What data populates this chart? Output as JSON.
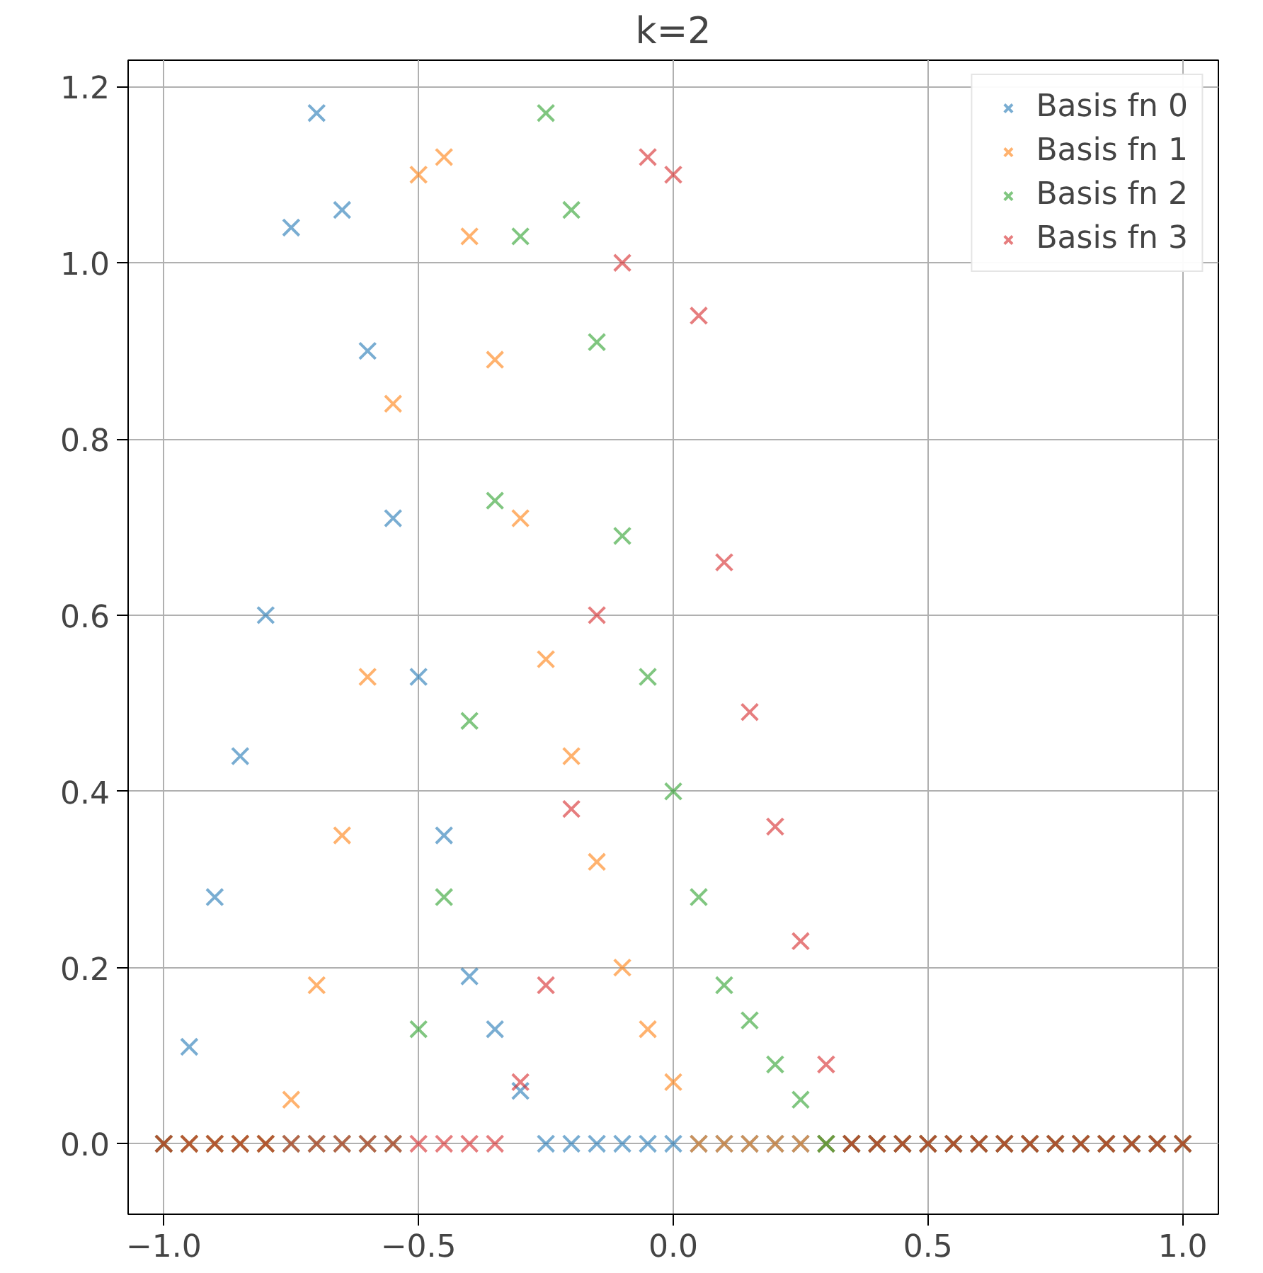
{
  "chart_data": {
    "type": "scatter",
    "title": "k=2",
    "x": [
      -1.0,
      -0.95,
      -0.9,
      -0.85,
      -0.8,
      -0.75,
      -0.7,
      -0.65,
      -0.6,
      -0.55,
      -0.5,
      -0.45,
      -0.4,
      -0.35,
      -0.3,
      -0.25,
      -0.2,
      -0.15,
      -0.1,
      -0.05,
      0.0,
      0.05,
      0.1,
      0.15,
      0.2,
      0.25,
      0.3,
      0.35,
      0.4,
      0.45,
      0.5,
      0.55,
      0.6,
      0.65,
      0.7,
      0.75,
      0.8,
      0.85,
      0.9,
      0.95,
      1.0
    ],
    "series": [
      {
        "name": "Basis fn 0",
        "color": "#1f77b4",
        "values": [
          0,
          0.11,
          0.28,
          0.44,
          0.6,
          1.04,
          1.17,
          1.06,
          0.9,
          0.71,
          0.53,
          0.35,
          0.19,
          0.13,
          0.06,
          0,
          0,
          0,
          0,
          0,
          0,
          0,
          0,
          0,
          0,
          0,
          0,
          0,
          0,
          0,
          0,
          0,
          0,
          0,
          0,
          0,
          0,
          0,
          0,
          0,
          0
        ]
      },
      {
        "name": "Basis fn 1",
        "color": "#ff7f0e",
        "values": [
          0,
          0,
          0,
          0,
          0,
          0.05,
          0.18,
          0.35,
          0.53,
          0.84,
          1.1,
          1.12,
          1.03,
          0.89,
          0.71,
          0.55,
          0.44,
          0.32,
          0.2,
          0.13,
          0.07,
          0,
          0,
          0,
          0,
          0,
          0,
          0,
          0,
          0,
          0,
          0,
          0,
          0,
          0,
          0,
          0,
          0,
          0,
          0,
          0
        ]
      },
      {
        "name": "Basis fn 2",
        "color": "#2ca02c",
        "values": [
          0,
          0,
          0,
          0,
          0,
          0,
          0,
          0,
          0,
          0,
          0.13,
          0.28,
          0.48,
          0.73,
          1.03,
          1.17,
          1.06,
          0.91,
          0.69,
          0.53,
          0.4,
          0.28,
          0.18,
          0.14,
          0.09,
          0.05,
          0,
          0,
          0,
          0,
          0,
          0,
          0,
          0,
          0,
          0,
          0,
          0,
          0,
          0,
          0
        ]
      },
      {
        "name": "Basis fn 3",
        "color": "#d62728",
        "values": [
          0,
          0,
          0,
          0,
          0,
          0,
          0,
          0,
          0,
          0,
          0,
          0,
          0,
          0,
          0.07,
          0.18,
          0.38,
          0.6,
          1.0,
          1.12,
          1.1,
          0.94,
          0.66,
          0.49,
          0.36,
          0.23,
          0.09,
          0,
          0,
          0,
          0,
          0,
          0,
          0,
          0,
          0,
          0,
          0,
          0,
          0,
          0
        ]
      }
    ],
    "xlim": [
      -1.07,
      1.07
    ],
    "ylim": [
      -0.08,
      1.23
    ],
    "xticks": [
      {
        "value": -1.0,
        "label": "−1.0"
      },
      {
        "value": -0.5,
        "label": "−0.5"
      },
      {
        "value": 0.0,
        "label": "0.0"
      },
      {
        "value": 0.5,
        "label": "0.5"
      },
      {
        "value": 1.0,
        "label": "1.0"
      }
    ],
    "yticks": [
      {
        "value": 0.0,
        "label": "0.0"
      },
      {
        "value": 0.2,
        "label": "0.2"
      },
      {
        "value": 0.4,
        "label": "0.4"
      },
      {
        "value": 0.6,
        "label": "0.6"
      },
      {
        "value": 0.8,
        "label": "0.8"
      },
      {
        "value": 1.0,
        "label": "1.0"
      },
      {
        "value": 1.2,
        "label": "1.2"
      }
    ],
    "grid": true,
    "legend": "top right",
    "marker": "cross"
  }
}
